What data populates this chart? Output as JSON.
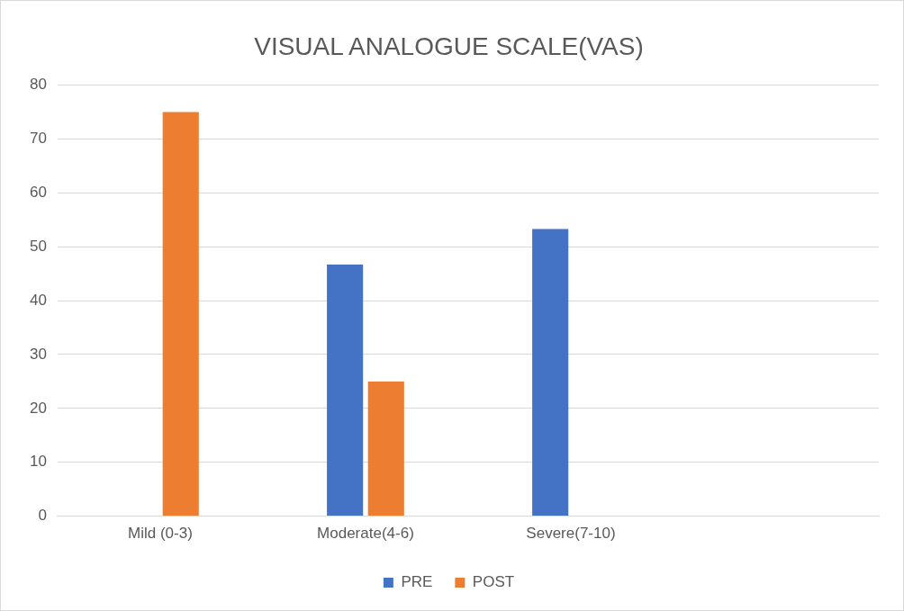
{
  "chart_data": {
    "type": "bar",
    "title": "VISUAL ANALOGUE SCALE(VAS)",
    "categories": [
      "Mild (0-3)",
      "Moderate(4-6)",
      "Severe(7-10)",
      null
    ],
    "series": [
      {
        "name": "PRE",
        "color": "#4472c4",
        "values": [
          0,
          46.7,
          53.3,
          null
        ]
      },
      {
        "name": "POST",
        "color": "#ed7d31",
        "values": [
          75,
          25,
          0,
          null
        ]
      }
    ],
    "ylim": [
      0,
      80
    ],
    "yticks": [
      0,
      10,
      20,
      30,
      40,
      50,
      60,
      70,
      80
    ],
    "grid": "y",
    "legend": "bottom"
  }
}
